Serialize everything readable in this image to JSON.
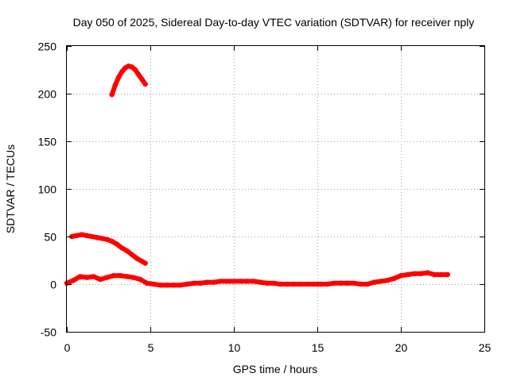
{
  "chart_data": {
    "type": "line",
    "title": "Day 050 of 2025, Sidereal Day-to-day VTEC variation (SDTVAR) for receiver nply",
    "xlabel": "GPS time / hours",
    "ylabel": "SDTVAR / TECUs",
    "xlim": [
      0,
      25
    ],
    "ylim": [
      -50,
      250
    ],
    "xticks": [
      0,
      5,
      10,
      15,
      20,
      25
    ],
    "yticks": [
      -50,
      0,
      50,
      100,
      150,
      200,
      250
    ],
    "grid": true,
    "series_color": "#ff0000",
    "series": [
      {
        "name": "satellite-arc-high",
        "x": [
          2.7,
          2.9,
          3.1,
          3.3,
          3.5,
          3.7,
          3.9,
          4.1,
          4.3,
          4.5,
          4.7
        ],
        "y": [
          199,
          209,
          217,
          223,
          227,
          229,
          228,
          225,
          220,
          215,
          210
        ]
      },
      {
        "name": "satellite-arc-mid",
        "x": [
          0.3,
          0.6,
          0.9,
          1.2,
          1.5,
          1.8,
          2.1,
          2.4,
          2.7,
          3.0,
          3.3,
          3.6,
          3.9,
          4.2,
          4.5,
          4.7
        ],
        "y": [
          50,
          51,
          52,
          51,
          50,
          49,
          48,
          47,
          45,
          42,
          38,
          35,
          31,
          27,
          24,
          22
        ]
      },
      {
        "name": "satellite-arcs-low",
        "x": [
          0,
          0.4,
          0.8,
          1.2,
          1.6,
          2.0,
          2.4,
          2.8,
          3.2,
          3.6,
          4.0,
          4.4,
          4.8,
          5.2,
          5.6,
          6.0,
          6.4,
          6.8,
          7.2,
          7.6,
          8.0,
          8.4,
          8.8,
          9.2,
          9.6,
          10.0,
          10.4,
          10.8,
          11.2,
          11.6,
          12.0,
          12.4,
          12.8,
          13.2,
          13.6,
          14.0,
          14.4,
          14.8,
          15.2,
          15.6,
          16.0,
          16.4,
          16.8,
          17.2,
          17.6,
          18.0,
          18.4,
          18.8,
          19.2,
          19.6,
          20.0,
          20.4,
          20.8,
          21.2,
          21.6,
          22.0,
          22.4,
          22.8
        ],
        "y": [
          1,
          4,
          8,
          7,
          8,
          5,
          7,
          9,
          9,
          8,
          7,
          5,
          1,
          0,
          -1,
          -1,
          -1,
          -1,
          0,
          1,
          1,
          2,
          2,
          3,
          3,
          3,
          3,
          3,
          3,
          2,
          1,
          1,
          0,
          0,
          0,
          0,
          0,
          0,
          0,
          0,
          1,
          1,
          1,
          1,
          0,
          0,
          2,
          3,
          4,
          6,
          9,
          10,
          11,
          11,
          12,
          10,
          10,
          10
        ]
      }
    ]
  }
}
